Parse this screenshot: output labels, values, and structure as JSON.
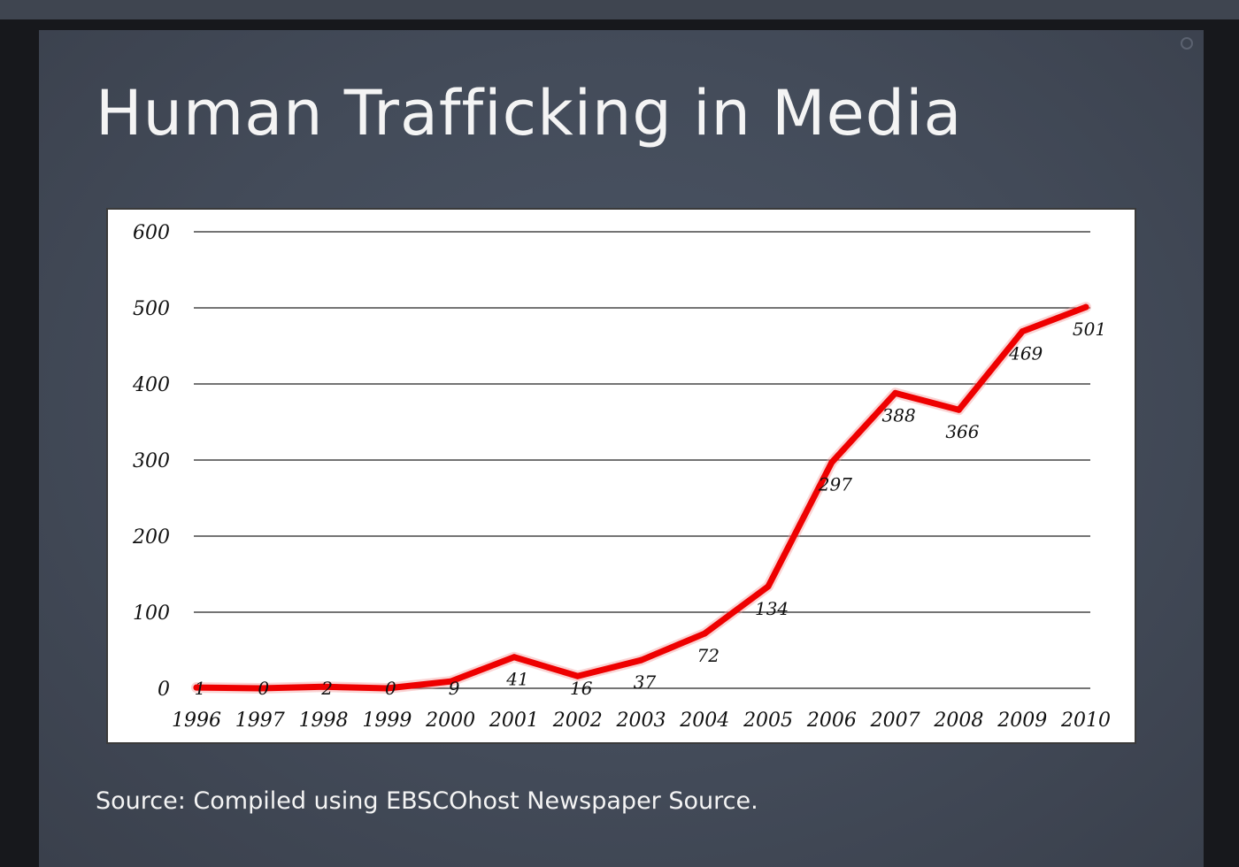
{
  "slide": {
    "title": "Human Trafficking in Media",
    "source": "Source: Compiled using EBSCOhost Newspaper Source."
  },
  "chart_data": {
    "type": "line",
    "x": [
      "1996",
      "1997",
      "1998",
      "1999",
      "2000",
      "2001",
      "2002",
      "2003",
      "2004",
      "2005",
      "2006",
      "2007",
      "2008",
      "2009",
      "2010"
    ],
    "series": [
      {
        "values": [
          1,
          0,
          2,
          0,
          9,
          41,
          16,
          37,
          72,
          134,
          297,
          388,
          366,
          469,
          501
        ],
        "color": "#ee0000"
      }
    ],
    "data_labels": [
      "1",
      "0",
      "2",
      "0",
      "9",
      "41",
      "16",
      "37",
      "72",
      "134",
      "297",
      "388",
      "366",
      "469",
      "501"
    ],
    "y_ticks": [
      "0",
      "100",
      "200",
      "300",
      "400",
      "500",
      "600"
    ],
    "ylim": [
      0,
      600
    ],
    "grid": true,
    "legend": "none",
    "title": "",
    "xlabel": "",
    "ylabel": ""
  },
  "colors": {
    "background": "#434b59",
    "text": "#f4f4f4",
    "line": "#ee0000"
  }
}
